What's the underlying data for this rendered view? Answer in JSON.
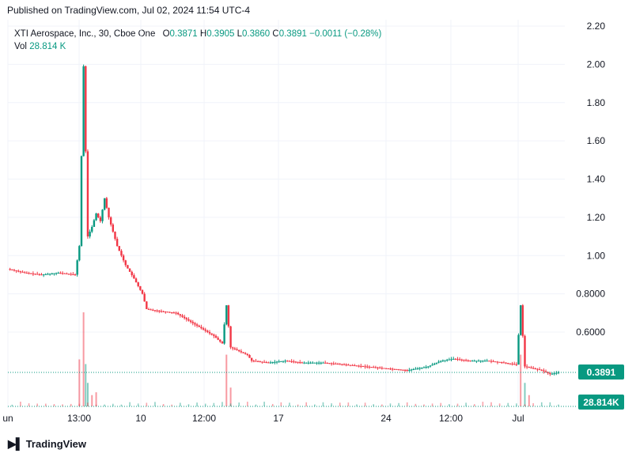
{
  "header": {
    "published": "Published on TradingView.com, Jul 02, 2024 11:54 UTC-4"
  },
  "legend": {
    "symbol": "XTI Aerospace, Inc., 30, Cboe One",
    "open_label": "O",
    "open": "0.3871",
    "high_label": "H",
    "high": "0.3905",
    "low_label": "L",
    "low": "0.3860",
    "close_label": "C",
    "close": "0.3891",
    "change": "−0.0011 (−0.28%)",
    "vol_label": "Vol",
    "vol": "28.814 K"
  },
  "badges": {
    "price": "0.3891",
    "volume": "28.814K"
  },
  "footer": {
    "brand": "TradingView",
    "logo_icon": "tradingview-logo-icon"
  },
  "colors": {
    "up": "#089981",
    "down": "#f23645",
    "grid": "#f0f3fa",
    "text": "#131722",
    "price_line": "#089981"
  },
  "chart_data": {
    "type": "candlestick",
    "interval": "30",
    "y_axis_labels": [
      "2.20",
      "2.00",
      "1.80",
      "1.60",
      "1.40",
      "1.20",
      "1.00",
      "0.8000",
      "0.6000"
    ],
    "y_axis_values": [
      2.2,
      2.0,
      1.8,
      1.6,
      1.4,
      1.2,
      1.0,
      0.8,
      0.6
    ],
    "ylim": [
      0.29,
      2.26
    ],
    "ylim_note": "",
    "x_axis_labels": [
      "un",
      "13:00",
      "10",
      "12:00",
      "17",
      "24",
      "12:00",
      "Jul"
    ],
    "last_price": 0.3891,
    "last_volume": "28.814K",
    "price_path": [
      {
        "t": 0,
        "p": 0.93
      },
      {
        "t": 4,
        "p": 0.91
      },
      {
        "t": 8,
        "p": 0.9
      },
      {
        "t": 12,
        "p": 0.91
      },
      {
        "t": 16,
        "p": 0.9
      },
      {
        "t": 17,
        "p": 1.05
      },
      {
        "t": 18,
        "p": 1.99
      },
      {
        "t": 19,
        "p": 1.1
      },
      {
        "t": 20,
        "p": 1.15
      },
      {
        "t": 21,
        "p": 1.22
      },
      {
        "t": 22,
        "p": 1.18
      },
      {
        "t": 23,
        "p": 1.3
      },
      {
        "t": 24,
        "p": 1.2
      },
      {
        "t": 26,
        "p": 1.05
      },
      {
        "t": 28,
        "p": 0.95
      },
      {
        "t": 30,
        "p": 0.88
      },
      {
        "t": 32,
        "p": 0.8
      },
      {
        "t": 33,
        "p": 0.72
      },
      {
        "t": 36,
        "p": 0.71
      },
      {
        "t": 40,
        "p": 0.7
      },
      {
        "t": 43,
        "p": 0.66
      },
      {
        "t": 46,
        "p": 0.62
      },
      {
        "t": 49,
        "p": 0.58
      },
      {
        "t": 51,
        "p": 0.54
      },
      {
        "t": 52,
        "p": 0.74
      },
      {
        "t": 53,
        "p": 0.52
      },
      {
        "t": 55,
        "p": 0.5
      },
      {
        "t": 57,
        "p": 0.48
      },
      {
        "t": 58,
        "p": 0.45
      },
      {
        "t": 62,
        "p": 0.44
      },
      {
        "t": 66,
        "p": 0.45
      },
      {
        "t": 70,
        "p": 0.44
      },
      {
        "t": 75,
        "p": 0.44
      },
      {
        "t": 80,
        "p": 0.43
      },
      {
        "t": 85,
        "p": 0.42
      },
      {
        "t": 90,
        "p": 0.41
      },
      {
        "t": 95,
        "p": 0.4
      },
      {
        "t": 100,
        "p": 0.42
      },
      {
        "t": 103,
        "p": 0.45
      },
      {
        "t": 106,
        "p": 0.46
      },
      {
        "t": 110,
        "p": 0.45
      },
      {
        "t": 114,
        "p": 0.45
      },
      {
        "t": 118,
        "p": 0.44
      },
      {
        "t": 121,
        "p": 0.43
      },
      {
        "t": 122,
        "p": 0.74
      },
      {
        "t": 123,
        "p": 0.42
      },
      {
        "t": 125,
        "p": 0.41
      },
      {
        "t": 127,
        "p": 0.4
      },
      {
        "t": 129,
        "p": 0.38
      },
      {
        "t": 131,
        "p": 0.3891
      }
    ],
    "volume_spikes": [
      {
        "t": 17,
        "v": 0.5,
        "dir": "down"
      },
      {
        "t": 18,
        "v": 1.0,
        "dir": "down"
      },
      {
        "t": 18.5,
        "v": 0.45,
        "dir": "up"
      },
      {
        "t": 19,
        "v": 0.25,
        "dir": "up"
      },
      {
        "t": 20,
        "v": 0.12,
        "dir": "down"
      },
      {
        "t": 21,
        "v": 0.15,
        "dir": "down"
      },
      {
        "t": 52,
        "v": 0.55,
        "dir": "down"
      },
      {
        "t": 53,
        "v": 0.2,
        "dir": "down"
      },
      {
        "t": 122,
        "v": 0.55,
        "dir": "down"
      },
      {
        "t": 123,
        "v": 0.25,
        "dir": "up"
      },
      {
        "t": 124,
        "v": 0.12,
        "dir": "down"
      }
    ],
    "t_max": 131
  }
}
